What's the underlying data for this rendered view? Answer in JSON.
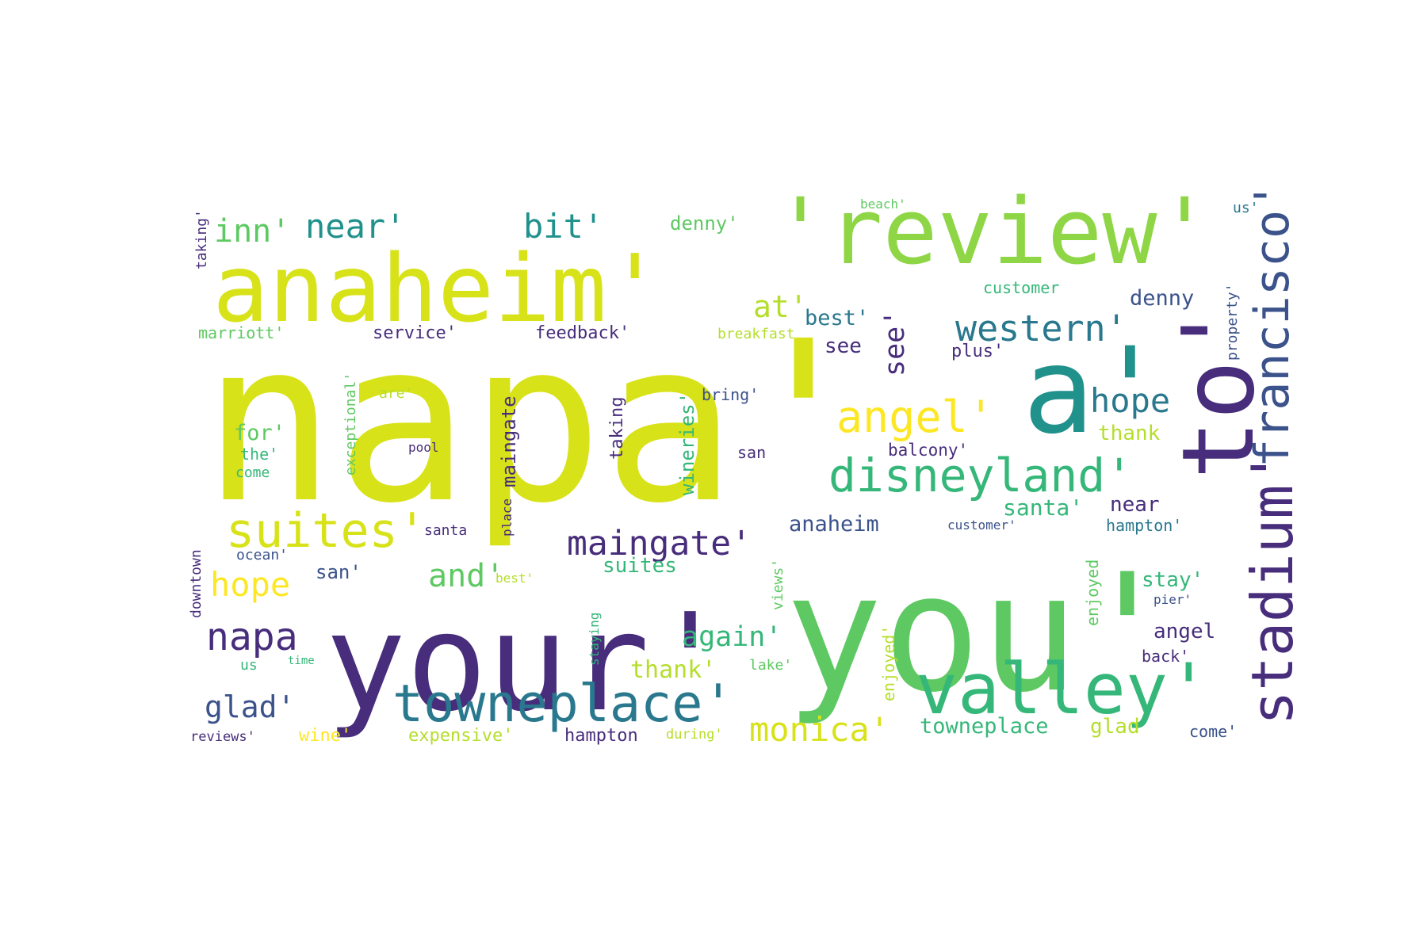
{
  "palette": {
    "c1": "#d8e219",
    "c2": "#8ed645",
    "c3": "#5ec962",
    "c4": "#35b779",
    "c5": "#21918c",
    "c6": "#2a788e",
    "c7": "#3b528b",
    "c8": "#472d7b",
    "c9": "#fde725",
    "c10": "#b5de2b",
    "c11": "#440154"
  },
  "words": [
    {
      "text": "napa'",
      "color": "c1"
    },
    {
      "text": "your'",
      "color": "c8"
    },
    {
      "text": "you'",
      "color": "c3"
    },
    {
      "text": "anaheim'",
      "color": "c1"
    },
    {
      "text": "'review'",
      "color": "c2"
    },
    {
      "text": "a'",
      "color": "c5"
    },
    {
      "text": "to'",
      "color": "c8"
    },
    {
      "text": "valley'",
      "color": "c4"
    },
    {
      "text": "stadium'",
      "color": "c8"
    },
    {
      "text": "francisco'",
      "color": "c7"
    },
    {
      "text": "towneplace'",
      "color": "c6"
    },
    {
      "text": "disneyland'",
      "color": "c4"
    },
    {
      "text": "suites'",
      "color": "c1"
    },
    {
      "text": "angel'",
      "color": "c9"
    },
    {
      "text": "western'",
      "color": "c6"
    },
    {
      "text": "maingate'",
      "color": "c8"
    },
    {
      "text": "monica'",
      "color": "c1"
    },
    {
      "text": "napa",
      "color": "c8"
    },
    {
      "text": "hope",
      "color": "c9"
    },
    {
      "text": "hope",
      "color": "c6"
    },
    {
      "text": "inn'",
      "color": "c3"
    },
    {
      "text": "near'",
      "color": "c5"
    },
    {
      "text": "bit'",
      "color": "c5"
    },
    {
      "text": "at'",
      "color": "c10"
    },
    {
      "text": "see'",
      "color": "c8"
    },
    {
      "text": "and'",
      "color": "c3"
    },
    {
      "text": "again'",
      "color": "c4"
    },
    {
      "text": "glad'",
      "color": "c7"
    },
    {
      "text": "maingate",
      "color": "c8"
    },
    {
      "text": "wineries'",
      "color": "c4"
    },
    {
      "text": "taking",
      "color": "c8"
    },
    {
      "text": "denny'",
      "color": "c3"
    },
    {
      "text": "denny",
      "color": "c7"
    },
    {
      "text": "best'",
      "color": "c6"
    },
    {
      "text": "customer",
      "color": "c4"
    },
    {
      "text": "beach'",
      "color": "c3"
    },
    {
      "text": "us'",
      "color": "c6"
    },
    {
      "text": "property'",
      "color": "c7"
    },
    {
      "text": "plus'",
      "color": "c8"
    },
    {
      "text": "see",
      "color": "c8"
    },
    {
      "text": "thank",
      "color": "c10"
    },
    {
      "text": "balcony'",
      "color": "c8"
    },
    {
      "text": "santa'",
      "color": "c4"
    },
    {
      "text": "near",
      "color": "c8"
    },
    {
      "text": "hampton'",
      "color": "c6"
    },
    {
      "text": "anaheim",
      "color": "c7"
    },
    {
      "text": "customer'",
      "color": "c7"
    },
    {
      "text": "stay'",
      "color": "c4"
    },
    {
      "text": "angel",
      "color": "c8"
    },
    {
      "text": "back'",
      "color": "c8"
    },
    {
      "text": "pier'",
      "color": "c7"
    },
    {
      "text": "enjoyed",
      "color": "c3"
    },
    {
      "text": "towneplace",
      "color": "c4"
    },
    {
      "text": "glad",
      "color": "c10"
    },
    {
      "text": "come'",
      "color": "c7"
    },
    {
      "text": "marriott'",
      "color": "c3"
    },
    {
      "text": "service'",
      "color": "c8"
    },
    {
      "text": "feedback'",
      "color": "c8"
    },
    {
      "text": "breakfast",
      "color": "c10"
    },
    {
      "text": "bring'",
      "color": "c7"
    },
    {
      "text": "are'",
      "color": "c10"
    },
    {
      "text": "for'",
      "color": "c3"
    },
    {
      "text": "the'",
      "color": "c4"
    },
    {
      "text": "come",
      "color": "c4"
    },
    {
      "text": "pool",
      "color": "c8"
    },
    {
      "text": "san",
      "color": "c8"
    },
    {
      "text": "exceptional'",
      "color": "c3"
    },
    {
      "text": "place",
      "color": "c8"
    },
    {
      "text": "santa",
      "color": "c8"
    },
    {
      "text": "ocean'",
      "color": "c7"
    },
    {
      "text": "san'",
      "color": "c7"
    },
    {
      "text": "best'",
      "color": "c10"
    },
    {
      "text": "suites",
      "color": "c4"
    },
    {
      "text": "downtown",
      "color": "c8"
    },
    {
      "text": "taking'",
      "color": "c8"
    },
    {
      "text": "views'",
      "color": "c3"
    },
    {
      "text": "staying",
      "color": "c4"
    },
    {
      "text": "enjoyed'",
      "color": "c10"
    },
    {
      "text": "thank'",
      "color": "c10"
    },
    {
      "text": "lake'",
      "color": "c3"
    },
    {
      "text": "us",
      "color": "c4"
    },
    {
      "text": "time",
      "color": "c4"
    },
    {
      "text": "reviews'",
      "color": "c8"
    },
    {
      "text": "wine'",
      "color": "c9"
    },
    {
      "text": "expensive'",
      "color": "c10"
    },
    {
      "text": "hampton",
      "color": "c8"
    },
    {
      "text": "during'",
      "color": "c10"
    }
  ]
}
